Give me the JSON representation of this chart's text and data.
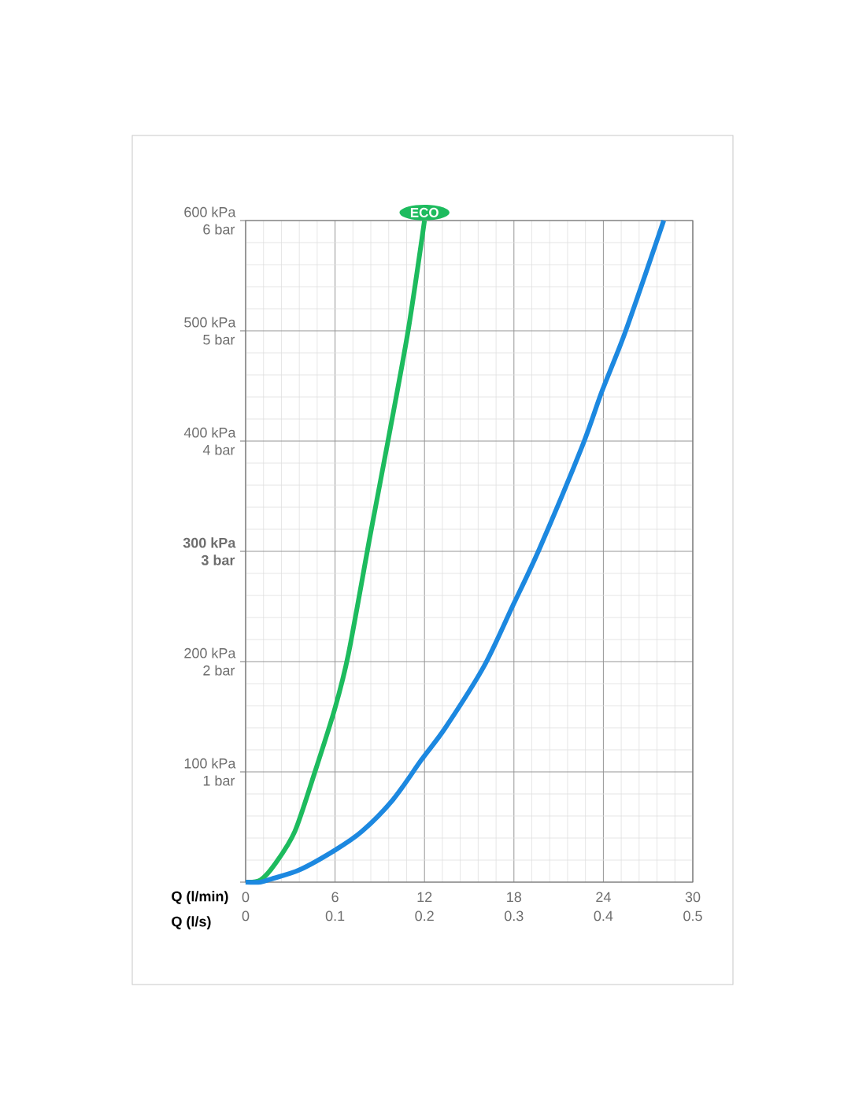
{
  "chart_data": {
    "type": "line",
    "xlabel": "Q (l/min)",
    "x2label": "Q (l/s)",
    "xlim": [
      0,
      30
    ],
    "xticks": [
      0,
      6,
      12,
      18,
      24,
      30
    ],
    "x2lim": [
      0,
      0.5
    ],
    "x2ticks": [
      0,
      0.1,
      0.2,
      0.3,
      0.4,
      0.5
    ],
    "ylim": [
      0,
      600
    ],
    "yticks": [
      {
        "value": 0,
        "label": null
      },
      {
        "value": 100,
        "label": "100 kPa"
      },
      {
        "value": 200,
        "label": "200 kPa"
      },
      {
        "value": 300,
        "label": "**300 kPa**"
      },
      {
        "value": 400,
        "label": "400 kPa"
      },
      {
        "value": 500,
        "label": "500 kPa"
      },
      {
        "value": 600,
        "label": "600 kPa"
      }
    ],
    "y2lim": [
      0,
      6
    ],
    "y2ticks": [
      {
        "value": 1,
        "label": "1 bar"
      },
      {
        "value": 2,
        "label": "2 bar"
      },
      {
        "value": 3,
        "label": "**3 bar**"
      },
      {
        "value": 4,
        "label": "4 bar"
      },
      {
        "value": 5,
        "label": "5 bar"
      },
      {
        "value": 6,
        "label": "6 bar"
      }
    ],
    "grid": true,
    "marker": "none",
    "line_style": "solid",
    "series": [
      {
        "name": "ECO",
        "color": "#1dbb5e",
        "x": [
          0,
          1,
          2,
          3.3,
          4.65,
          6,
          6.9,
          8.35,
          9.55,
          10.9,
          12
        ],
        "values": [
          0,
          2,
          17,
          46,
          100,
          158,
          207,
          314,
          400,
          500,
          600
        ]
      },
      {
        "color": "#1c88e0",
        "x": [
          0,
          1,
          1.75,
          3.6,
          6,
          7.8,
          9.9,
          11.8,
          13.4,
          16,
          17.9,
          19.7,
          22.6,
          23.9,
          25.5,
          28.05
        ],
        "values": [
          0,
          0,
          3,
          11,
          29,
          46,
          75,
          111,
          140,
          196,
          250,
          302,
          396,
          445,
          500,
          600
        ]
      }
    ]
  }
}
